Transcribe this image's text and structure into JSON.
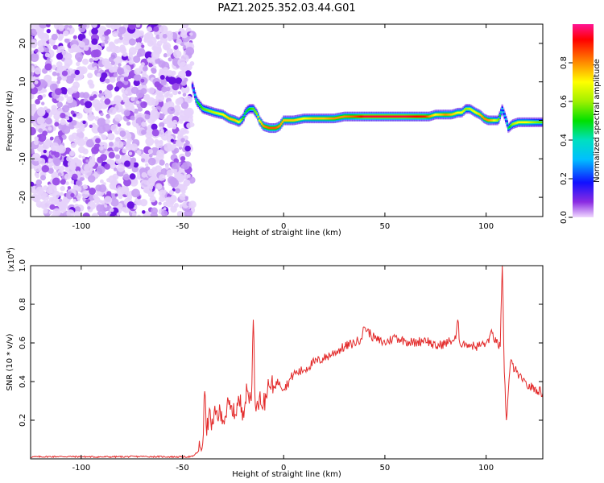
{
  "figure": {
    "title": "PAZ1.2025.352.03.44.G01",
    "colorbar_label": "Normalized spectral amplitude",
    "colorbar_ticks": [
      "0.0",
      "0.2",
      "0.4",
      "0.6",
      "0.8"
    ],
    "colorbar_tick_values": [
      0.0,
      0.2,
      0.4,
      0.6,
      0.8
    ],
    "colors": {
      "snr_line": "#e32b2b",
      "axes": "#000000"
    }
  },
  "chart_data": [
    {
      "type": "heatmap",
      "title": "",
      "xlabel": "Height of straight line (km)",
      "ylabel": "Frequency (Hz)",
      "xlim": [
        -125,
        128
      ],
      "ylim": [
        -25,
        25
      ],
      "xticks": [
        -100,
        -50,
        0,
        50,
        100
      ],
      "xtick_labels": [
        "-100",
        "-50",
        "0",
        "50",
        "100"
      ],
      "yticks": [
        -20,
        -10,
        0,
        10,
        20
      ],
      "ytick_labels": [
        "-20",
        "-10",
        "0",
        "10",
        "20"
      ],
      "noise_region_x": [
        -125,
        -45
      ],
      "ridge": {
        "x": [
          -45,
          -43,
          -40,
          -37,
          -34,
          -30,
          -27,
          -24,
          -22,
          -20,
          -19,
          -17,
          -15,
          -13,
          -12,
          -10,
          -7,
          -4,
          -2,
          0,
          5,
          10,
          15,
          20,
          25,
          30,
          35,
          40,
          50,
          60,
          70,
          72,
          75,
          78,
          80,
          83,
          86,
          88,
          90,
          92,
          95,
          97,
          99,
          101,
          103,
          106,
          108,
          110,
          111,
          113,
          116,
          120,
          124,
          128
        ],
        "y": [
          9,
          5,
          3,
          2.5,
          2,
          1.5,
          0.5,
          0,
          -0.5,
          0.5,
          2,
          3,
          3,
          1.5,
          0,
          -1.5,
          -2,
          -2,
          -1.5,
          0,
          0,
          0.5,
          0.5,
          0.5,
          0.5,
          1,
          1,
          1,
          1,
          1,
          1,
          1,
          1.5,
          1.5,
          1.5,
          1.5,
          2,
          2,
          3,
          3,
          2,
          1.5,
          0.5,
          0,
          0,
          0,
          3,
          0,
          -2,
          -1,
          -0.5,
          -0.5,
          -0.5,
          -0.5
        ],
        "amplitude": [
          0.2,
          0.45,
          0.55,
          0.6,
          0.65,
          0.7,
          0.75,
          0.75,
          0.7,
          0.5,
          0.45,
          0.5,
          0.55,
          0.6,
          0.7,
          0.8,
          0.85,
          0.85,
          0.8,
          0.75,
          0.75,
          0.7,
          0.75,
          0.75,
          0.8,
          0.8,
          0.85,
          0.95,
          0.95,
          0.95,
          0.9,
          0.8,
          0.7,
          0.75,
          0.8,
          0.75,
          0.7,
          0.7,
          0.6,
          0.65,
          0.7,
          0.75,
          0.8,
          0.8,
          0.75,
          0.6,
          0.3,
          0.3,
          0.45,
          0.6,
          0.7,
          0.7,
          0.6,
          0.55
        ]
      }
    },
    {
      "type": "line",
      "xlabel": "Height of straight line (km)",
      "ylabel": "SNR (10 * v/v)",
      "y_multiplier_label": "(x10",
      "y_multiplier_exponent": "4",
      "y_multiplier_close": ")",
      "xlim": [
        -125,
        128
      ],
      "ylim": [
        0,
        1.0
      ],
      "xticks": [
        -100,
        -50,
        0,
        50,
        100
      ],
      "xtick_labels": [
        "-100",
        "-50",
        "0",
        "50",
        "100"
      ],
      "yticks": [
        0.2,
        0.4,
        0.6,
        0.8,
        1.0
      ],
      "ytick_labels": [
        "0.2",
        "0.4",
        "0.6",
        "0.8",
        "1.0"
      ],
      "series": [
        {
          "name": "SNR",
          "x": [
            -125,
            -110,
            -90,
            -70,
            -50,
            -45,
            -42,
            -40,
            -39,
            -38,
            -37,
            -35,
            -33,
            -30,
            -27,
            -25,
            -22,
            -20,
            -18,
            -16,
            -15,
            -14,
            -13,
            -12,
            -10,
            -8,
            -5,
            -2,
            0,
            5,
            10,
            15,
            20,
            25,
            30,
            35,
            38,
            40,
            45,
            50,
            55,
            60,
            65,
            70,
            75,
            80,
            85,
            86,
            87,
            90,
            95,
            100,
            103,
            105,
            107,
            108,
            109,
            110,
            112,
            115,
            118,
            120,
            125,
            128
          ],
          "y": [
            0.01,
            0.012,
            0.01,
            0.012,
            0.01,
            0.012,
            0.04,
            0.08,
            0.35,
            0.12,
            0.22,
            0.18,
            0.25,
            0.2,
            0.28,
            0.22,
            0.3,
            0.25,
            0.35,
            0.3,
            0.72,
            0.28,
            0.3,
            0.32,
            0.28,
            0.35,
            0.38,
            0.4,
            0.36,
            0.44,
            0.46,
            0.5,
            0.52,
            0.55,
            0.58,
            0.6,
            0.62,
            0.68,
            0.62,
            0.6,
            0.63,
            0.61,
            0.6,
            0.62,
            0.58,
            0.6,
            0.62,
            0.72,
            0.6,
            0.6,
            0.58,
            0.6,
            0.65,
            0.6,
            0.58,
            1.0,
            0.45,
            0.2,
            0.5,
            0.45,
            0.4,
            0.38,
            0.36,
            0.34
          ]
        }
      ]
    }
  ]
}
